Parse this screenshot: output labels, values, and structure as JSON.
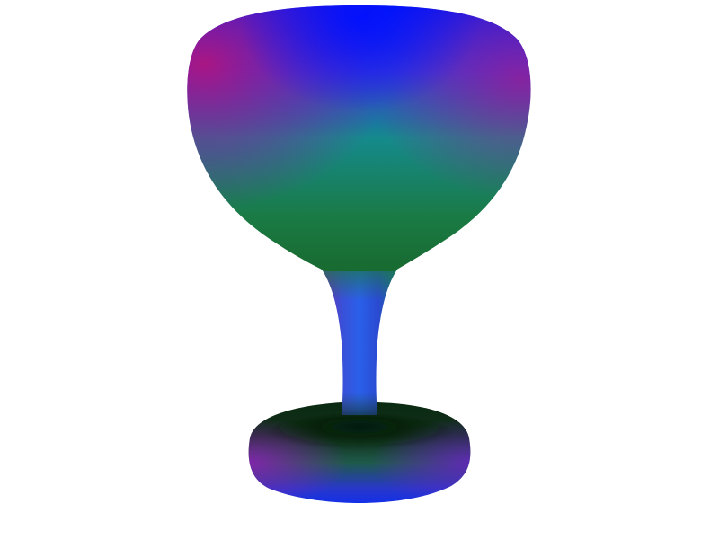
{
  "scene": {
    "background_color": "#ffffff",
    "object": "goblet",
    "shading": "surface-normal-map",
    "colors": {
      "top_blue": "#0a18f0",
      "side_magenta": "#a0188c",
      "mid_teal": "#148a8a",
      "lower_green": "#1a7a3e",
      "base_dark": "#0c2a12",
      "base_rim_blue": "#1430e0",
      "base_side_purple": "#7a20b0",
      "stem_blue": "#2a48e0"
    }
  }
}
